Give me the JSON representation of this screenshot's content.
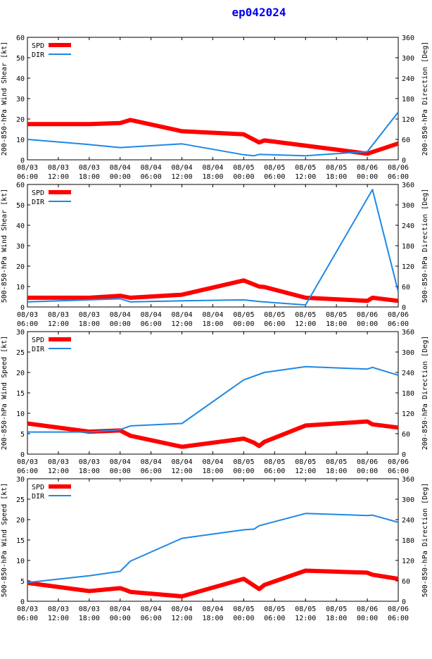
{
  "title": "ep042024",
  "colors": {
    "spd": "#ff0000",
    "dir": "#1e88e5",
    "title": "#0000ee",
    "axis": "#000000"
  },
  "x_ticks": [
    [
      "08/03",
      "06:00"
    ],
    [
      "08/03",
      "12:00"
    ],
    [
      "08/03",
      "18:00"
    ],
    [
      "08/04",
      "00:00"
    ],
    [
      "08/04",
      "06:00"
    ],
    [
      "08/04",
      "12:00"
    ],
    [
      "08/04",
      "18:00"
    ],
    [
      "08/05",
      "00:00"
    ],
    [
      "08/05",
      "06:00"
    ],
    [
      "08/05",
      "12:00"
    ],
    [
      "08/05",
      "18:00"
    ],
    [
      "08/06",
      "00:00"
    ],
    [
      "08/06",
      "06:00"
    ]
  ],
  "chart_data": [
    {
      "type": "line",
      "ylabel_left": "200-850-hPa Wind Shear [kt]",
      "ylabel_right": "200-850-hPa Direction [Deg]",
      "ylim_left": [
        0,
        60
      ],
      "yticks_left": [
        0,
        10,
        20,
        30,
        40,
        50,
        60
      ],
      "ylim_right": [
        0,
        360
      ],
      "yticks_right": [
        0,
        60,
        120,
        180,
        240,
        300,
        360
      ],
      "xlim_hours": [
        0,
        72
      ],
      "legend": [
        "SPD",
        "DIR"
      ],
      "series": [
        {
          "name": "SPD",
          "axis": "left",
          "x": [
            0,
            12,
            18,
            20,
            30,
            42,
            45,
            46,
            60,
            66,
            72
          ],
          "y": [
            17.5,
            17.5,
            18,
            19.5,
            14,
            12.5,
            8.5,
            9.5,
            5,
            3,
            8
          ]
        },
        {
          "name": "DIR",
          "axis": "right",
          "x": [
            0,
            12,
            18,
            30,
            42,
            44,
            45,
            54,
            63,
            66,
            72
          ],
          "y": [
            60,
            45,
            36,
            47,
            15,
            12,
            16,
            12,
            21,
            24,
            140
          ]
        }
      ]
    },
    {
      "type": "line",
      "ylabel_left": "500-850-hPa Wind Shear [kt]",
      "ylabel_right": "500-850-hPa Direction [Deg]",
      "ylim_left": [
        0,
        60
      ],
      "yticks_left": [
        0,
        10,
        20,
        30,
        40,
        50,
        60
      ],
      "ylim_right": [
        0,
        360
      ],
      "yticks_right": [
        0,
        60,
        120,
        180,
        240,
        300,
        360
      ],
      "xlim_hours": [
        0,
        72
      ],
      "legend": [
        "SPD",
        "DIR"
      ],
      "series": [
        {
          "name": "SPD",
          "axis": "left",
          "x": [
            0,
            12,
            18,
            20,
            30,
            42,
            45,
            46,
            54,
            66,
            67,
            72
          ],
          "y": [
            4.5,
            4.5,
            5.5,
            4.5,
            6,
            13,
            10,
            9.8,
            4.5,
            3,
            4.5,
            3
          ]
        },
        {
          "name": "DIR",
          "axis": "right",
          "x": [
            0,
            12,
            18,
            20,
            30,
            42,
            45,
            54,
            67,
            72
          ],
          "y": [
            15,
            21,
            24,
            15,
            18,
            21,
            16,
            6,
            345,
            45
          ]
        }
      ]
    },
    {
      "type": "line",
      "ylabel_left": "200-850-hPa Wind Speed [kt]",
      "ylabel_right": "200-850-hPa Direction [Deg]",
      "ylim_left": [
        0,
        30
      ],
      "yticks_left": [
        0,
        5,
        10,
        15,
        20,
        25,
        30
      ],
      "ylim_right": [
        0,
        360
      ],
      "yticks_right": [
        0,
        60,
        120,
        180,
        240,
        300,
        360
      ],
      "xlim_hours": [
        0,
        72
      ],
      "legend": [
        "SPD",
        "DIR"
      ],
      "series": [
        {
          "name": "SPD",
          "axis": "left",
          "x": [
            0,
            12,
            18,
            20,
            30,
            42,
            44,
            45,
            46,
            54,
            66,
            67,
            72
          ],
          "y": [
            7.5,
            5.5,
            5.8,
            4.5,
            1.8,
            3.8,
            2.8,
            2,
            3,
            7,
            8,
            7.3,
            6.5
          ]
        },
        {
          "name": "DIR",
          "axis": "right",
          "x": [
            0,
            12,
            18,
            20,
            30,
            42,
            46,
            54,
            66,
            67,
            72
          ],
          "y": [
            65,
            65,
            72,
            83,
            90,
            218,
            240,
            257,
            250,
            255,
            232
          ]
        }
      ]
    },
    {
      "type": "line",
      "ylabel_left": "500-850-hPa Wind Speed [kt]",
      "ylabel_right": "500-850-hPa Direction [Deg]",
      "ylim_left": [
        0,
        30
      ],
      "yticks_left": [
        0,
        5,
        10,
        15,
        20,
        25,
        30
      ],
      "ylim_right": [
        0,
        360
      ],
      "yticks_right": [
        0,
        60,
        120,
        180,
        240,
        300,
        360
      ],
      "xlim_hours": [
        0,
        72
      ],
      "legend": [
        "SPD",
        "DIR"
      ],
      "series": [
        {
          "name": "SPD",
          "axis": "left",
          "x": [
            0,
            12,
            18,
            19,
            20,
            30,
            42,
            45,
            46,
            54,
            66,
            67,
            72
          ],
          "y": [
            4.5,
            2.5,
            3.2,
            2.8,
            2.3,
            1.2,
            5.5,
            3,
            4,
            7.5,
            7,
            6.5,
            5.5
          ]
        },
        {
          "name": "DIR",
          "axis": "right",
          "x": [
            0,
            12,
            18,
            20,
            30,
            42,
            44,
            45,
            54,
            66,
            67,
            72
          ],
          "y": [
            55,
            75,
            88,
            118,
            185,
            210,
            212,
            222,
            258,
            252,
            253,
            232
          ]
        }
      ]
    }
  ]
}
